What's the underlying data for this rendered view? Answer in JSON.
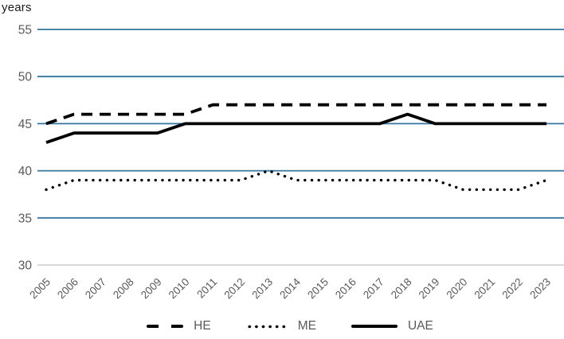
{
  "chart_data": {
    "type": "line",
    "title": "",
    "ylabel": "years",
    "xlabel": "",
    "x": [
      "2005",
      "2006",
      "2007",
      "2008",
      "2009",
      "2010",
      "2011",
      "2012",
      "2013",
      "2014",
      "2015",
      "2016",
      "2017",
      "2018",
      "2019",
      "2020",
      "2021",
      "2022",
      "2023"
    ],
    "series": [
      {
        "name": "HE",
        "style": "dashed",
        "values": [
          45,
          46,
          46,
          46,
          46,
          46,
          47,
          47,
          47,
          47,
          47,
          47,
          47,
          47,
          47,
          47,
          47,
          47,
          47
        ]
      },
      {
        "name": "ME",
        "style": "dotted",
        "values": [
          38,
          39,
          39,
          39,
          39,
          39,
          39,
          39,
          40,
          39,
          39,
          39,
          39,
          39,
          39,
          38,
          38,
          38,
          39
        ]
      },
      {
        "name": "UAE",
        "style": "solid",
        "values": [
          43,
          44,
          44,
          44,
          44,
          45,
          45,
          45,
          45,
          45,
          45,
          45,
          45,
          46,
          45,
          45,
          45,
          45,
          45
        ]
      }
    ],
    "ylim": [
      30,
      55
    ],
    "yticks": [
      55,
      50,
      45,
      40,
      35,
      30
    ],
    "grid": true,
    "legend_position": "bottom-center",
    "colors": {
      "gridline": "#35749e",
      "baseline": "#d9d9d9",
      "series": "#000000",
      "tick_labels": "#595959",
      "axis_title": "#1a1a1a"
    }
  }
}
